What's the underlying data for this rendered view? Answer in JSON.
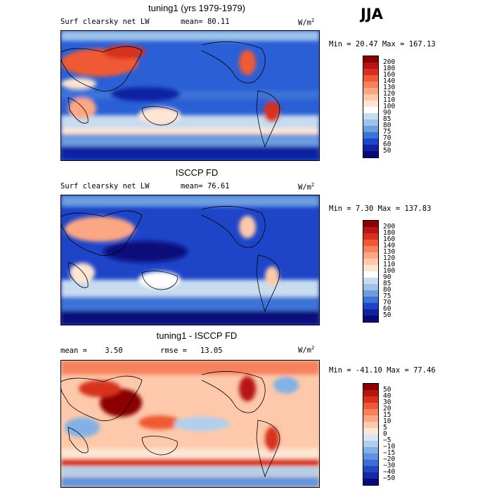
{
  "season": "JJA",
  "panels": [
    {
      "title": "tuning1 (yrs 1979-1979)",
      "var_label": "Surf clearsky net LW",
      "mean_label": "mean=",
      "mean_value": "80.11",
      "units_main": "W/m",
      "units_exp": "2",
      "minmax": "Min =  20.47 Max = 167.13",
      "levels": [
        "200",
        "180",
        "160",
        "140",
        "130",
        "120",
        "110",
        "100",
        "90",
        "85",
        "80",
        "75",
        "70",
        "60",
        "50"
      ],
      "colors": [
        "#8b0000",
        "#b81414",
        "#d7301f",
        "#ef5a36",
        "#f7815d",
        "#fba784",
        "#fdc9aa",
        "#fee5d4",
        "#ffffff",
        "#c7dcef",
        "#9dc3ea",
        "#6d9fe0",
        "#3c73d8",
        "#1e44c8",
        "#1022a0",
        "#08087a"
      ]
    },
    {
      "title": "ISCCP FD",
      "var_label": "Surf clearsky net LW",
      "mean_label": "mean=",
      "mean_value": "76.61",
      "units_main": "W/m",
      "units_exp": "2",
      "minmax": "Min =   7.30 Max = 137.83",
      "levels": [
        "200",
        "180",
        "160",
        "140",
        "130",
        "120",
        "110",
        "100",
        "90",
        "85",
        "80",
        "75",
        "70",
        "60",
        "50"
      ],
      "colors": [
        "#8b0000",
        "#b81414",
        "#d7301f",
        "#ef5a36",
        "#f7815d",
        "#fba784",
        "#fdc9aa",
        "#fee5d4",
        "#ffffff",
        "#c7dcef",
        "#9dc3ea",
        "#6d9fe0",
        "#3c73d8",
        "#1e44c8",
        "#1022a0",
        "#08087a"
      ]
    },
    {
      "title": "tuning1 - ISCCP FD",
      "mean_label": "mean =",
      "mean_value": "3.50",
      "rmse_label": "rmse =",
      "rmse_value": "13.05",
      "units_main": "W/m",
      "units_exp": "2",
      "minmax": "Min = -41.10 Max =  77.46",
      "levels": [
        "50",
        "40",
        "30",
        "20",
        "15",
        "10",
        "5",
        "0",
        "−5",
        "−10",
        "−15",
        "−20",
        "−30",
        "−40",
        "−50"
      ],
      "colors": [
        "#8b0000",
        "#b81414",
        "#d7301f",
        "#ef5a36",
        "#f7815d",
        "#fba784",
        "#fdc9aa",
        "#fee5d4",
        "#d6e6f6",
        "#b0cfee",
        "#83b1e6",
        "#5f93e0",
        "#3c6ed6",
        "#2147c4",
        "#122ba5",
        "#080a7a"
      ]
    }
  ],
  "chart_data": [
    {
      "type": "heatmap",
      "title": "tuning1 (yrs 1979-1979)",
      "subtitle": "Surf clearsky net LW",
      "mean": 80.11,
      "units": "W/m^2",
      "min": 20.47,
      "max": 167.13,
      "colorbar_levels": [
        200,
        180,
        160,
        140,
        130,
        120,
        110,
        100,
        90,
        85,
        80,
        75,
        70,
        60,
        50
      ],
      "colorbar_position": "right"
    },
    {
      "type": "heatmap",
      "title": "ISCCP FD",
      "subtitle": "Surf clearsky net LW",
      "mean": 76.61,
      "units": "W/m^2",
      "min": 7.3,
      "max": 137.83,
      "colorbar_levels": [
        200,
        180,
        160,
        140,
        130,
        120,
        110,
        100,
        90,
        85,
        80,
        75,
        70,
        60,
        50
      ],
      "colorbar_position": "right"
    },
    {
      "type": "heatmap",
      "title": "tuning1 - ISCCP FD",
      "mean": 3.5,
      "rmse": 13.05,
      "units": "W/m^2",
      "min": -41.1,
      "max": 77.46,
      "colorbar_levels": [
        50,
        40,
        30,
        20,
        15,
        10,
        5,
        0,
        -5,
        -10,
        -15,
        -20,
        -30,
        -40,
        -50
      ],
      "colorbar_position": "right"
    }
  ]
}
